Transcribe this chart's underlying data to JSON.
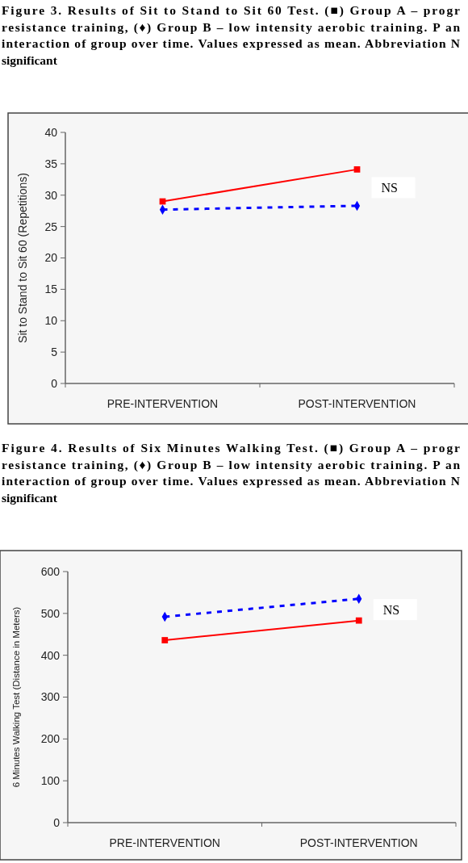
{
  "chart_data": [
    {
      "type": "line",
      "title": "Figure 3. Results of Sit to Stand to Sit 60 Test. (■) Group A – progr\nresistance training, (♦) Group B – low intensity aerobic training. P an\ninteraction of group over time. Values expressed as mean. Abbreviation N\nsignificant",
      "ylabel": "Sit to Stand to Sit 60 (Repetitions)",
      "categories": [
        "PRE-INTERVENTION",
        "POST-INTERVENTION"
      ],
      "ylim": [
        0,
        40
      ],
      "yticks": [
        0,
        5,
        10,
        15,
        20,
        25,
        30,
        35,
        40
      ],
      "series": [
        {
          "color": "#ff0000",
          "values": [
            29,
            34.1
          ],
          "marker": "square",
          "line_style": "solid"
        },
        {
          "color": "#0000ff",
          "values": [
            27.7,
            28.3
          ],
          "marker": "diamond",
          "line_style": "dashed"
        }
      ],
      "annotations": [
        "NS"
      ]
    },
    {
      "type": "line",
      "title": "Figure 4. Results of Six Minutes Walking Test. (■) Group A – progr\nresistance training, (♦) Group B – low intensity aerobic training. P an\ninteraction of group over time. Values expressed as mean. Abbreviation N\nsignificant",
      "ylabel": "6 Minutes Walking Test (Distance in Meters)",
      "categories": [
        "PRE-INTERVENTION",
        "POST-INTERVENTION"
      ],
      "ylim": [
        0,
        600
      ],
      "yticks": [
        0,
        100,
        200,
        300,
        400,
        500,
        600
      ],
      "series": [
        {
          "color": "#ff0000",
          "values": [
            436,
            483
          ],
          "marker": "square",
          "line_style": "solid"
        },
        {
          "color": "#0000ff",
          "values": [
            492,
            535
          ],
          "marker": "diamond",
          "line_style": "dashed"
        }
      ],
      "annotations": [
        "NS"
      ]
    }
  ]
}
